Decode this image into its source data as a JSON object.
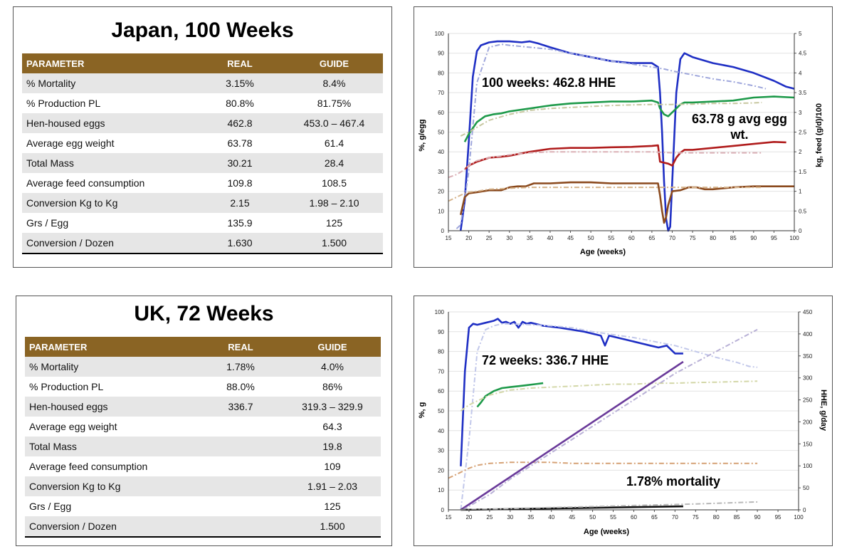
{
  "tables": [
    {
      "title": "Japan, 100 Weeks",
      "headers": [
        "PARAMETER",
        "REAL",
        "GUIDE"
      ],
      "rows": [
        [
          "% Mortality",
          "3.15%",
          "8.4%"
        ],
        [
          "% Production PL",
          "80.8%",
          "81.75%"
        ],
        [
          "Hen-housed eggs",
          "462.8",
          "453.0 – 467.4"
        ],
        [
          "Average egg weight",
          "63.78",
          "61.4"
        ],
        [
          "Total Mass",
          "30.21",
          "28.4"
        ],
        [
          "Average feed consumption",
          "109.8",
          "108.5"
        ],
        [
          "Conversion Kg to Kg",
          "2.15",
          "1.98 – 2.10"
        ],
        [
          "Grs / Egg",
          "135.9",
          "125"
        ],
        [
          "Conversion / Dozen",
          "1.630",
          "1.500"
        ]
      ]
    },
    {
      "title": "UK, 72 Weeks",
      "headers": [
        "PARAMETER",
        "REAL",
        "GUIDE"
      ],
      "rows": [
        [
          "% Mortality",
          "1.78%",
          "4.0%"
        ],
        [
          "% Production PL",
          "88.0%",
          "86%"
        ],
        [
          "Hen-housed eggs",
          "336.7",
          "319.3 – 329.9"
        ],
        [
          "Average egg weight",
          "",
          "64.3"
        ],
        [
          "Total Mass",
          "",
          "19.8"
        ],
        [
          "Average feed consumption",
          "",
          "109"
        ],
        [
          "Conversion Kg to Kg",
          "",
          "1.91 – 2.03"
        ],
        [
          "Grs / Egg",
          "",
          "125"
        ],
        [
          "Conversion / Dozen",
          "",
          "1.500"
        ]
      ]
    }
  ],
  "chart_data": [
    {
      "type": "line",
      "xlabel": "Age (weeks)",
      "ylabel": "%, g/egg",
      "y2label": "kg, feed (g/d)/100",
      "xlim": [
        15,
        100
      ],
      "ylim": [
        0,
        100
      ],
      "y2lim": [
        0,
        5
      ],
      "xticks": [
        15,
        20,
        25,
        30,
        35,
        40,
        45,
        50,
        55,
        60,
        65,
        70,
        75,
        80,
        85,
        90,
        95,
        100
      ],
      "yticks": [
        0,
        10,
        20,
        30,
        40,
        50,
        60,
        70,
        80,
        90,
        100
      ],
      "y2ticks": [
        "0",
        "0.5",
        "1",
        "1.5",
        "2",
        "2.5",
        "3",
        "3.5",
        "4",
        "4.5",
        "5"
      ],
      "annotations": [
        "100 weeks: 462.8 HHE",
        "63.78 g avg egg wt."
      ],
      "series": [
        {
          "role": "production",
          "color": "#1f2fc4",
          "dashed": false,
          "x": [
            18,
            19,
            20,
            21,
            22,
            23,
            25,
            27,
            30,
            33,
            35,
            37,
            40,
            45,
            50,
            55,
            60,
            62,
            65,
            66.5,
            67,
            67.5,
            68,
            68.5,
            69,
            69.5,
            70,
            71,
            72,
            73,
            75,
            80,
            85,
            90,
            95,
            98,
            100
          ],
          "y": [
            0,
            15,
            45,
            78,
            91,
            94,
            95.5,
            96,
            96,
            95.5,
            96,
            95,
            93,
            90,
            88,
            86,
            85,
            85,
            85,
            83,
            70,
            50,
            25,
            6,
            0,
            2,
            25,
            70,
            87,
            90,
            88,
            85,
            83,
            80,
            76,
            73,
            72
          ]
        },
        {
          "role": "production-guide",
          "color": "#9fa7dc",
          "dashed": true,
          "x": [
            17,
            18,
            20,
            22,
            25,
            28,
            30,
            35,
            40,
            45,
            50,
            55,
            60,
            65,
            68,
            70,
            75,
            80,
            85,
            90,
            93
          ],
          "y": [
            1,
            3,
            30,
            75,
            93,
            94.5,
            94,
            93,
            92,
            90,
            88,
            86,
            84.5,
            83,
            82,
            81,
            79,
            77,
            75.5,
            73.5,
            72
          ]
        },
        {
          "role": "egg-weight",
          "color": "#1e9a4a",
          "dashed": false,
          "x": [
            19,
            20,
            22,
            24,
            26,
            28,
            30,
            35,
            40,
            45,
            50,
            55,
            60,
            65,
            66.5,
            67,
            68,
            69,
            70,
            71,
            72,
            73,
            75,
            80,
            85,
            90,
            95,
            100
          ],
          "y": [
            45,
            49,
            55,
            58,
            59,
            59.5,
            60.5,
            62,
            63.5,
            64.5,
            65,
            65.5,
            65.5,
            66,
            65,
            62,
            59,
            58,
            60,
            62,
            64,
            65,
            65,
            65.5,
            66,
            67.5,
            68,
            67.5
          ]
        },
        {
          "role": "egg-weight-guide",
          "color": "#c7c7a0",
          "dashed": true,
          "x": [
            18,
            20,
            25,
            30,
            35,
            40,
            45,
            50,
            55,
            60,
            65,
            70,
            75,
            80,
            85,
            90,
            92
          ],
          "y": [
            48,
            50,
            56,
            59,
            61,
            62,
            62.5,
            63,
            63.5,
            63.8,
            64,
            64,
            64.2,
            64.5,
            64.5,
            64.8,
            65
          ]
        },
        {
          "role": "egg-mass",
          "color": "#b01c1c",
          "dashed": false,
          "x": [
            19,
            20,
            22,
            25,
            28,
            30,
            35,
            40,
            45,
            50,
            55,
            60,
            65,
            66.5,
            67,
            69,
            70,
            71,
            72,
            73,
            75,
            80,
            85,
            90,
            95,
            98
          ],
          "y": [
            31,
            33,
            35,
            37,
            37.5,
            38,
            40,
            41.5,
            42,
            42,
            42.3,
            42.5,
            43,
            43.3,
            35,
            34,
            33,
            37,
            39.5,
            41,
            41,
            42,
            43,
            44,
            45,
            44.8
          ]
        },
        {
          "role": "egg-mass-guide",
          "color": "#dbb0b6",
          "dashed": true,
          "x": [
            15,
            17,
            19,
            20,
            22,
            25,
            30,
            35,
            40,
            45,
            50,
            55,
            60,
            65,
            70,
            75,
            80,
            85,
            90,
            92
          ],
          "y": [
            27,
            28.5,
            31,
            33,
            35.5,
            37,
            38.5,
            39.5,
            40,
            40,
            40,
            40,
            40,
            40,
            39.5,
            39.5,
            39.5,
            39.5,
            39.5,
            39.5
          ]
        },
        {
          "role": "feed",
          "color": "#8b4a1e",
          "dashed": false,
          "x": [
            18,
            19,
            20,
            22,
            25,
            28,
            30,
            32,
            34,
            36,
            40,
            45,
            50,
            55,
            60,
            66.5,
            67,
            67.5,
            68,
            68.5,
            69,
            70,
            72,
            74,
            76,
            78,
            80,
            85,
            90,
            95,
            100
          ],
          "y": [
            8,
            17,
            19,
            19.5,
            20.5,
            20.5,
            22,
            22.5,
            22.5,
            24,
            24,
            24.5,
            24.5,
            24,
            24,
            24,
            18,
            10,
            4,
            7,
            13,
            20,
            20.5,
            22,
            22,
            21,
            21,
            22,
            22.5,
            22.5,
            22.5
          ]
        },
        {
          "role": "feed-guide",
          "color": "#d6b48c",
          "dashed": true,
          "x": [
            15,
            17,
            19,
            20,
            22,
            25,
            30,
            35,
            40,
            45,
            50,
            55,
            60,
            65,
            70,
            75,
            80,
            85,
            90,
            92
          ],
          "y": [
            15,
            17,
            19,
            19.5,
            20,
            21,
            21.5,
            22,
            22,
            22,
            22,
            22,
            22,
            22,
            22,
            22,
            22,
            22,
            22,
            22
          ]
        }
      ]
    },
    {
      "type": "line",
      "xlabel": "Age (weeks)",
      "ylabel": "%, g",
      "y2label": "HHE, g/day",
      "xlim": [
        15,
        100
      ],
      "ylim": [
        0,
        100
      ],
      "y2lim": [
        0,
        450
      ],
      "xticks": [
        15,
        20,
        25,
        30,
        35,
        40,
        45,
        50,
        55,
        60,
        65,
        70,
        75,
        80,
        85,
        90,
        95,
        100
      ],
      "yticks": [
        0,
        10,
        20,
        30,
        40,
        50,
        60,
        70,
        80,
        90,
        100
      ],
      "y2ticks": [
        "0",
        "50",
        "100",
        "150",
        "200",
        "250",
        "300",
        "350",
        "400",
        "450"
      ],
      "annotations": [
        "72 weeks: 336.7 HHE",
        "1.78% mortality"
      ],
      "series": [
        {
          "role": "production",
          "color": "#1f2fc4",
          "dashed": false,
          "x": [
            18,
            19,
            20,
            21,
            22,
            24,
            26,
            27,
            28,
            29,
            30,
            31,
            32,
            33,
            34,
            35,
            36,
            38,
            40,
            42,
            45,
            48,
            50,
            52,
            53,
            54,
            56,
            58,
            60,
            62,
            64,
            66,
            68,
            70,
            72
          ],
          "y": [
            22,
            70,
            92,
            94,
            93.5,
            94.5,
            95.5,
            96.5,
            94.5,
            95,
            94,
            95,
            92,
            95,
            94,
            94.5,
            94,
            93,
            92.5,
            92,
            91,
            90,
            89,
            88,
            83,
            88,
            87,
            86,
            85,
            84,
            83,
            82,
            83,
            79,
            79
          ]
        },
        {
          "role": "production-guide",
          "color": "#c2c8ea",
          "dashed": true,
          "x": [
            18,
            20,
            22,
            24,
            26,
            28,
            30,
            35,
            40,
            45,
            50,
            55,
            60,
            65,
            70,
            75,
            80,
            85,
            88,
            90
          ],
          "y": [
            0,
            35,
            80,
            91,
            93,
            94,
            94,
            93.5,
            93,
            92,
            90,
            88.5,
            87,
            85,
            83,
            80,
            77,
            74.5,
            72.5,
            72
          ]
        },
        {
          "role": "egg-weight",
          "color": "#1e9a4a",
          "dashed": false,
          "x": [
            22,
            23,
            24,
            26,
            28,
            30,
            32,
            34,
            36,
            38
          ],
          "y": [
            52,
            54.5,
            57.5,
            60,
            61.5,
            62,
            62.5,
            63,
            63.5,
            64
          ]
        },
        {
          "role": "egg-weight-guide",
          "color": "#d3d7a8",
          "dashed": true,
          "x": [
            18,
            20,
            25,
            30,
            35,
            40,
            45,
            50,
            55,
            60,
            65,
            70,
            75,
            80,
            85,
            90
          ],
          "y": [
            50,
            53,
            58,
            60.5,
            61.5,
            62,
            62.5,
            63,
            63.5,
            63.5,
            64,
            64,
            64.3,
            64.5,
            64.8,
            65
          ]
        },
        {
          "role": "feed-guide",
          "color": "#d6a276",
          "dashed": true,
          "x": [
            15,
            17,
            19,
            20,
            22,
            25,
            30,
            35,
            40,
            45,
            50,
            55,
            60,
            65,
            70,
            75,
            80,
            85,
            90
          ],
          "y": [
            16,
            18,
            20,
            21,
            22.5,
            23.5,
            24,
            24,
            24,
            23.5,
            23.5,
            23.5,
            23.5,
            23.5,
            23.5,
            23.5,
            23.5,
            23.5,
            23.5
          ]
        },
        {
          "role": "hhe-cumulative",
          "axis": "right",
          "color": "#6a3a9a",
          "dashed": false,
          "x": [
            18,
            72
          ],
          "y": [
            0,
            336.7
          ]
        },
        {
          "role": "hhe-cumulative-guide",
          "axis": "right",
          "color": "#b8b0d6",
          "dashed": true,
          "x": [
            18.5,
            25,
            30,
            40,
            50,
            60,
            70,
            80,
            90
          ],
          "y": [
            0,
            35,
            70,
            130,
            190,
            250,
            310,
            360,
            410
          ]
        },
        {
          "role": "mortality",
          "color": "#111111",
          "dashed": false,
          "x": [
            18,
            72
          ],
          "y": [
            0,
            1.78
          ]
        },
        {
          "role": "mortality-guide",
          "color": "#b8b8b8",
          "dashed": true,
          "x": [
            18,
            30,
            45,
            60,
            75,
            90
          ],
          "y": [
            0,
            0.7,
            1.4,
            2.2,
            3.0,
            4.0
          ]
        }
      ]
    }
  ]
}
